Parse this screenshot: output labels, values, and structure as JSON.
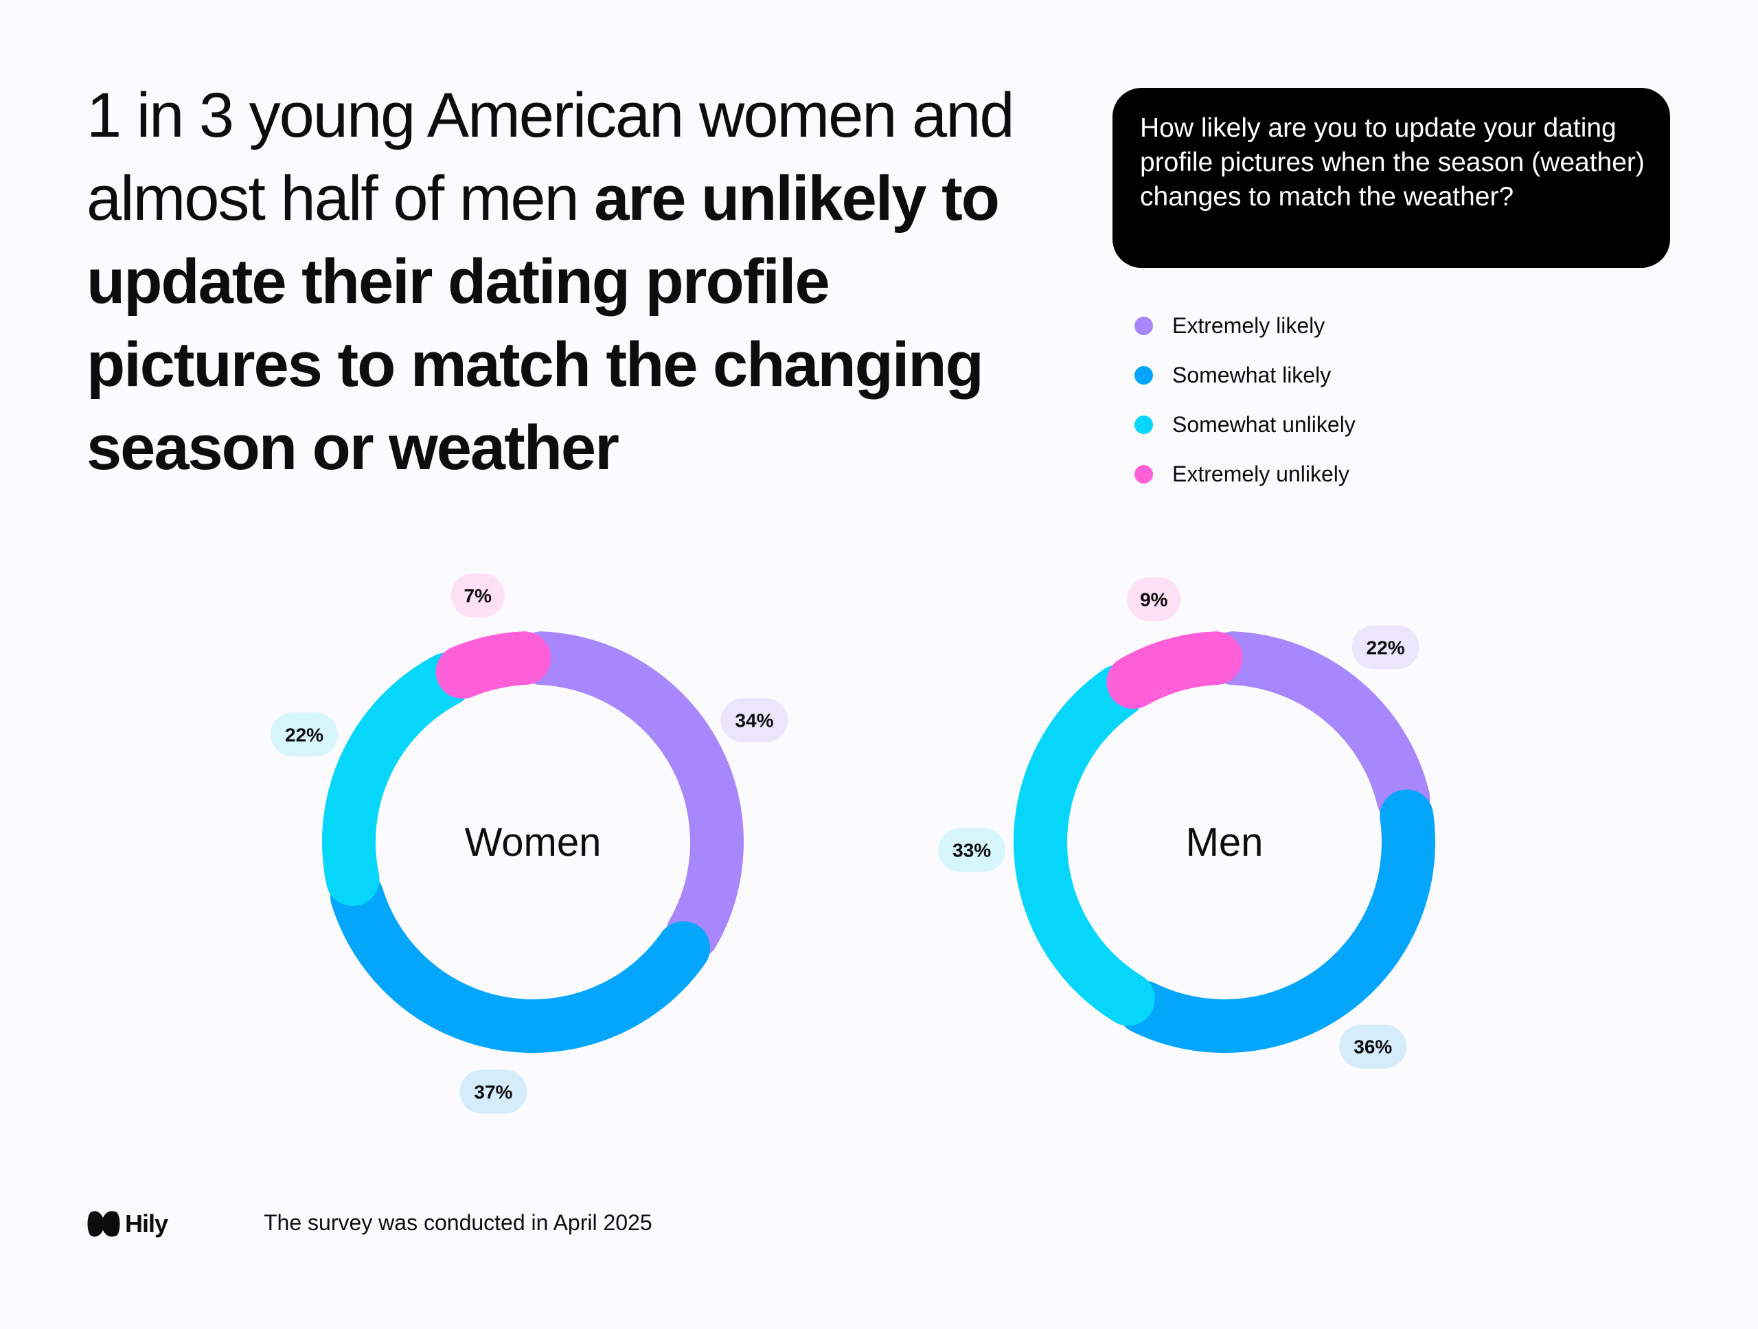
{
  "headline": {
    "regular": "1 in 3 young American women and almost half of men ",
    "bold": "are unlikely to update their dating profile pictures to match the changing season or weather"
  },
  "question": "How likely are you to update your dating profile pictures when the season (weather) changes to match the weather?",
  "legend": [
    {
      "label": "Extremely likely",
      "color": "#a886fb"
    },
    {
      "label": "Somewhat likely",
      "color": "#04a6fb"
    },
    {
      "label": "Somewhat unlikely",
      "color": "#06d6fa"
    },
    {
      "label": "Extremely unlikely",
      "color": "#ff5ed9"
    }
  ],
  "chart_data": [
    {
      "type": "pie",
      "variant": "donut",
      "center_label": "Women",
      "categories": [
        "Extremely likely",
        "Somewhat likely",
        "Somewhat unlikely",
        "Extremely unlikely"
      ],
      "values": [
        34,
        37,
        22,
        7
      ],
      "value_labels": [
        "34%",
        "37%",
        "22%",
        "7%"
      ],
      "colors": [
        "#a886fb",
        "#04a6fb",
        "#06d6fa",
        "#ff5ed9"
      ]
    },
    {
      "type": "pie",
      "variant": "donut",
      "center_label": "Men",
      "categories": [
        "Extremely likely",
        "Somewhat likely",
        "Somewhat unlikely",
        "Extremely unlikely"
      ],
      "values": [
        22,
        36,
        33,
        9
      ],
      "value_labels": [
        "22%",
        "36%",
        "33%",
        "9%"
      ],
      "colors": [
        "#a886fb",
        "#04a6fb",
        "#06d6fa",
        "#ff5ed9"
      ]
    }
  ],
  "footer": {
    "logo": "Hily",
    "note": "The survey was conducted in April 2025"
  }
}
